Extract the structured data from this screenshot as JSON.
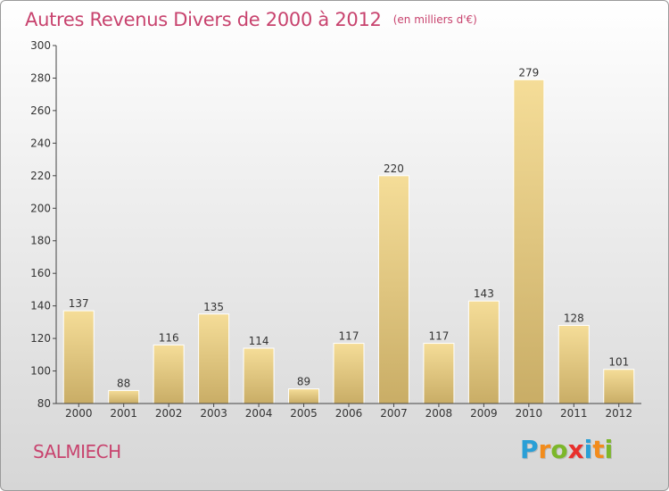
{
  "header": {
    "title": "Autres Revenus Divers de 2000 à 2012",
    "unit": "(en milliers d'€)"
  },
  "commune": "SALMIECH",
  "logo": {
    "text": "Proxiti",
    "letters": [
      {
        "char": "P",
        "color": "#2a9fd6"
      },
      {
        "char": "r",
        "color": "#f28c1c"
      },
      {
        "char": "o",
        "color": "#7cb72a"
      },
      {
        "char": "x",
        "color": "#e8302c"
      },
      {
        "char": "i",
        "color": "#2a9fd6"
      },
      {
        "char": "t",
        "color": "#f28c1c"
      },
      {
        "char": "i",
        "color": "#7cb72a"
      }
    ]
  },
  "colors": {
    "bar_light": "#f5dd98",
    "bar_dark": "#c9ad66",
    "title": "#c8436e"
  },
  "chart_data": {
    "type": "bar",
    "title": "Autres Revenus Divers de 2000 à 2012",
    "subtitle": "(en milliers d'€)",
    "categories": [
      "2000",
      "2001",
      "2002",
      "2003",
      "2004",
      "2005",
      "2006",
      "2007",
      "2008",
      "2009",
      "2010",
      "2011",
      "2012"
    ],
    "values": [
      137,
      88,
      116,
      135,
      114,
      89,
      117,
      220,
      117,
      143,
      279,
      128,
      101
    ],
    "ylim": [
      80,
      300
    ],
    "yticks": [
      80,
      100,
      120,
      140,
      160,
      180,
      200,
      220,
      240,
      260,
      280,
      300
    ],
    "grid": false,
    "legend": "none"
  }
}
